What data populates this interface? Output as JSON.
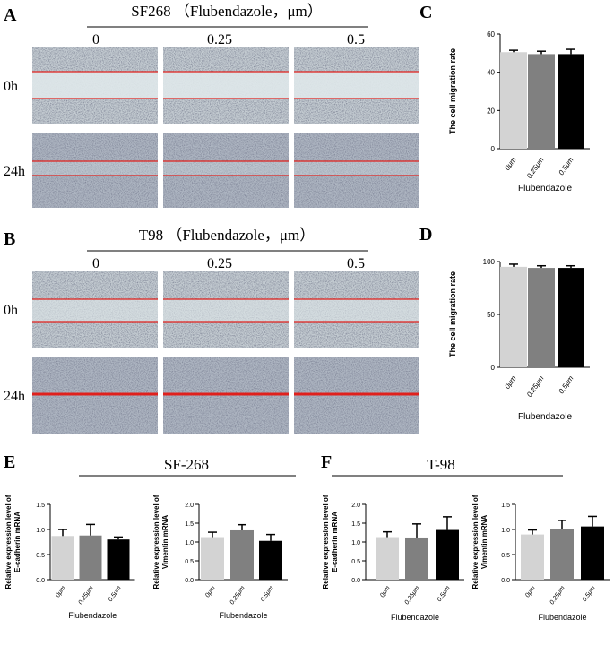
{
  "panels": [
    {
      "letter": "A",
      "title": "SF268 （Flubendazole，μm）",
      "columns": [
        "0",
        "0.25",
        "0.5"
      ],
      "rows": [
        "0h",
        "24h"
      ]
    },
    {
      "letter": "B",
      "title": "T98 （Flubendazole，μm）",
      "columns": [
        "0",
        "0.25",
        "0.5"
      ],
      "rows": [
        "0h",
        "24h"
      ]
    }
  ],
  "groups": [
    {
      "letter": "E",
      "title": "SF-268"
    },
    {
      "letter": "F",
      "title": "T-98"
    }
  ],
  "chart_data": [
    {
      "type": "bar",
      "letter": "C",
      "categories": [
        "0μm",
        "0.25μm",
        "0.5μm"
      ],
      "values": [
        50.5,
        49.5,
        49.5
      ],
      "errors": [
        1,
        1.5,
        2.5
      ],
      "colors": [
        "#d3d3d3",
        "#808080",
        "#000000"
      ],
      "ylim": [
        0,
        60
      ],
      "yticks": [
        0,
        20,
        40,
        60
      ],
      "y_label": [
        "The cell migration rate"
      ],
      "x_label": "Flubendazole"
    },
    {
      "type": "bar",
      "letter": "D",
      "categories": [
        "0μm",
        "0.25μm",
        "0.5μm"
      ],
      "values": [
        95,
        94,
        94
      ],
      "errors": [
        2.5,
        2,
        2
      ],
      "colors": [
        "#d3d3d3",
        "#808080",
        "#000000"
      ],
      "ylim": [
        0,
        100
      ],
      "yticks": [
        0,
        50,
        100
      ],
      "y_label": [
        "The cell migration rate"
      ],
      "x_label": "Flubendazole"
    },
    {
      "type": "bar",
      "categories": [
        "0μm",
        "0.25μm",
        "0.5μm"
      ],
      "values": [
        0.87,
        0.88,
        0.8
      ],
      "errors": [
        0.13,
        0.22,
        0.05
      ],
      "colors": [
        "#d3d3d3",
        "#808080",
        "#000000"
      ],
      "ylim": [
        0,
        1.5
      ],
      "yticks": [
        {
          "value": 0,
          "label": "0.0"
        },
        0.5,
        {
          "value": 1,
          "label": "1.0"
        },
        1.5
      ],
      "y_label": [
        "Relative expression level of",
        "E-cadherin mRNA"
      ],
      "x_label": "Flubendazole"
    },
    {
      "type": "bar",
      "categories": [
        "0μm",
        "0.25μm",
        "0.5μm"
      ],
      "values": [
        1.13,
        1.31,
        1.03
      ],
      "errors": [
        0.13,
        0.15,
        0.17
      ],
      "colors": [
        "#d3d3d3",
        "#808080",
        "#000000"
      ],
      "ylim": [
        0,
        2
      ],
      "yticks": [
        {
          "value": 0,
          "label": "0.0"
        },
        0.5,
        {
          "value": 1,
          "label": "1.0"
        },
        1.5,
        {
          "value": 2,
          "label": "2.0"
        }
      ],
      "y_label": [
        "Relative expression level of",
        "Vimentin mRNA"
      ],
      "x_label": "Flubendazole"
    },
    {
      "type": "bar",
      "categories": [
        "0μm",
        "0.25μm",
        "0.5μm"
      ],
      "values": [
        1.13,
        1.12,
        1.32
      ],
      "errors": [
        0.14,
        0.36,
        0.35
      ],
      "colors": [
        "#d3d3d3",
        "#808080",
        "#000000"
      ],
      "ylim": [
        0,
        2
      ],
      "yticks": [
        {
          "value": 0,
          "label": "0.0"
        },
        0.5,
        {
          "value": 1,
          "label": "1.0"
        },
        1.5,
        {
          "value": 2,
          "label": "2.0"
        }
      ],
      "y_label": [
        "Relative expression level of",
        "E-cadherin mRNA"
      ],
      "x_label": "Flubendazole"
    },
    {
      "type": "bar",
      "categories": [
        "0μm",
        "0.25μm",
        "0.5μm"
      ],
      "values": [
        0.9,
        1.0,
        1.06
      ],
      "errors": [
        0.09,
        0.18,
        0.2
      ],
      "colors": [
        "#d3d3d3",
        "#808080",
        "#000000"
      ],
      "ylim": [
        0,
        1.5
      ],
      "yticks": [
        {
          "value": 0,
          "label": "0.0"
        },
        0.5,
        {
          "value": 1,
          "label": "1.0"
        },
        1.5
      ],
      "y_label": [
        "Relative expression level of",
        "Vimentin mRNA"
      ],
      "x_label": "Flubendazole"
    }
  ]
}
